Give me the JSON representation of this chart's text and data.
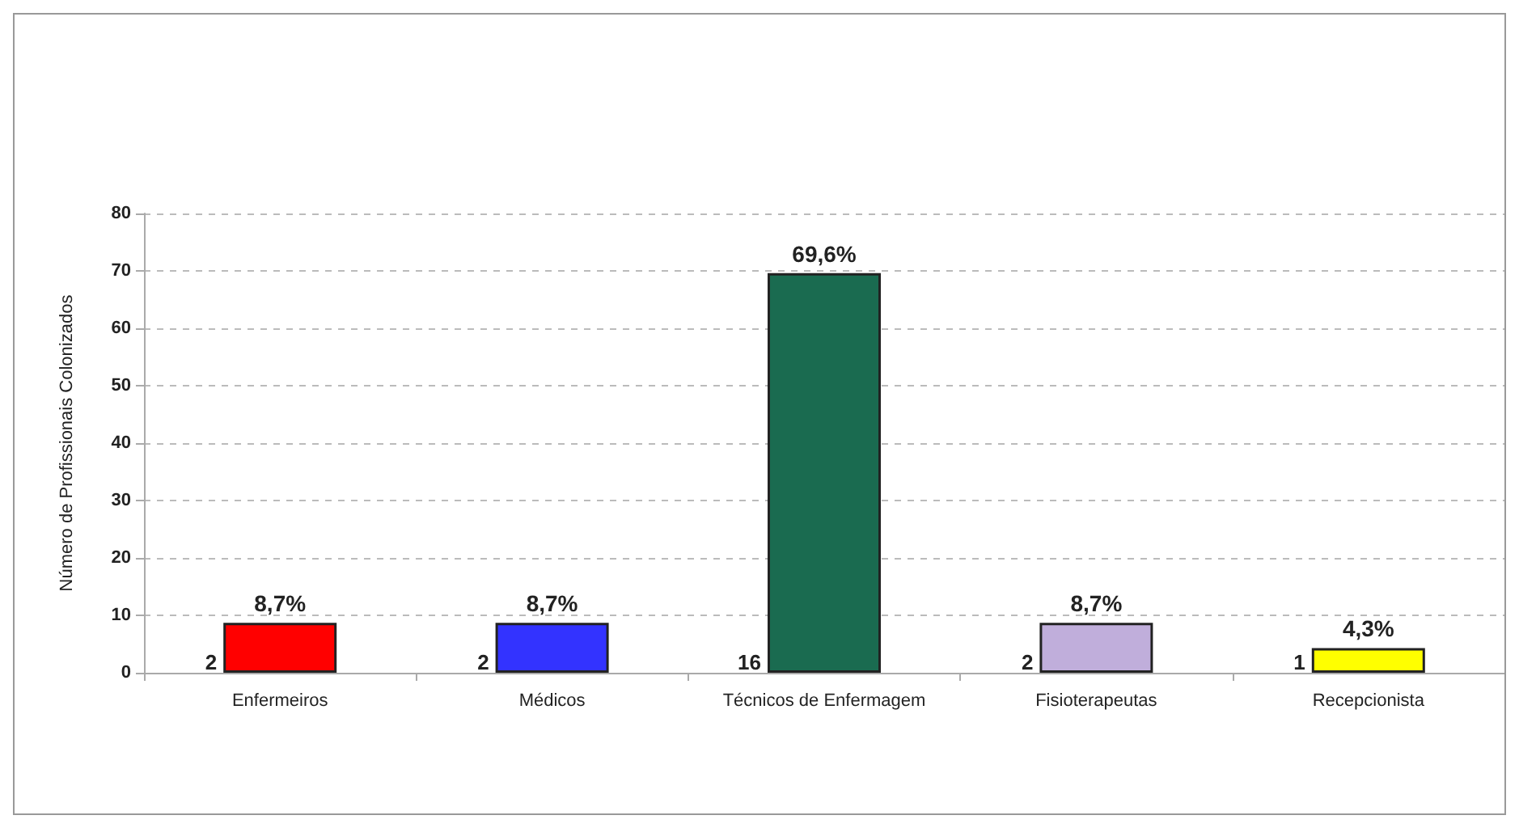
{
  "chart_data": {
    "type": "bar",
    "ylabel": "Número de Profissionais Colonizados",
    "categories": [
      "Enfermeiros",
      "Médicos",
      "Técnicos de Enfermagem",
      "Fisioterapeutas",
      "Recepcionista"
    ],
    "values": [
      8.7,
      8.7,
      69.6,
      8.7,
      4.3
    ],
    "value_labels": [
      "8,7%",
      "8,7%",
      "69,6%",
      "8,7%",
      "4,3%"
    ],
    "colors": [
      "#ff0000",
      "#3333ff",
      "#1a6b50",
      "#c0aedb",
      "#ffff00"
    ],
    "ylim": [
      0,
      80
    ],
    "yticks": [
      0,
      10,
      20,
      30,
      40,
      50,
      60,
      70,
      80
    ],
    "grid": "y",
    "annotations": [
      "2",
      "2",
      "16",
      "2",
      "1"
    ]
  }
}
